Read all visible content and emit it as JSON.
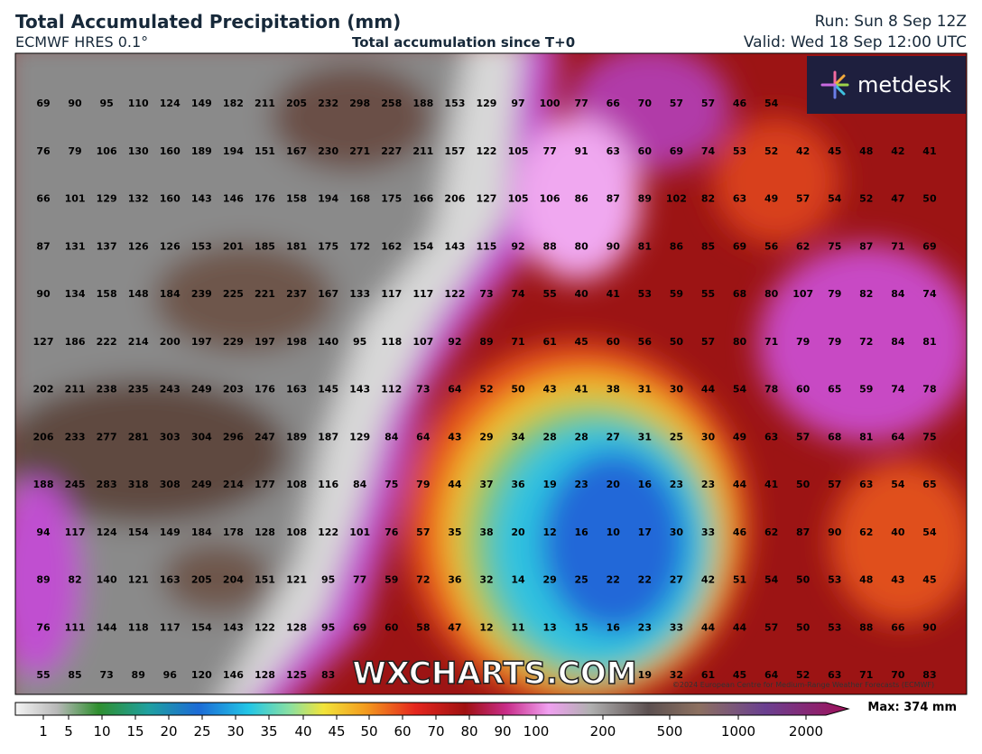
{
  "header": {
    "title": "Total Accumulated Precipitation (mm)",
    "model": "ECMWF HRES 0.1°",
    "subtitle": "Total accumulation since T+0",
    "run": "Run: Sun 8 Sep 12Z",
    "valid": "Valid: Wed 18 Sep 12:00 UTC"
  },
  "logo": "metdesk",
  "watermark": "WXCHARTS.COM",
  "copyright": "©2024 European Centre for Medium-Range Weather Forecasts (ECMWF)",
  "grid": {
    "rows": [
      [
        69,
        90,
        95,
        110,
        124,
        149,
        182,
        211,
        205,
        232,
        298,
        258,
        188,
        153,
        129,
        97,
        100,
        77,
        66,
        70,
        57,
        57,
        46,
        54,
        null,
        null,
        null,
        null,
        null
      ],
      [
        76,
        79,
        106,
        130,
        160,
        189,
        194,
        151,
        167,
        230,
        271,
        227,
        211,
        157,
        122,
        105,
        77,
        91,
        63,
        60,
        69,
        74,
        53,
        52,
        42,
        45,
        48,
        42,
        41
      ],
      [
        66,
        101,
        129,
        132,
        160,
        143,
        146,
        176,
        158,
        194,
        168,
        175,
        166,
        206,
        127,
        105,
        106,
        86,
        87,
        89,
        102,
        82,
        63,
        49,
        57,
        54,
        52,
        47,
        50
      ],
      [
        87,
        131,
        137,
        126,
        126,
        153,
        201,
        185,
        181,
        175,
        172,
        162,
        154,
        143,
        115,
        92,
        88,
        80,
        90,
        81,
        86,
        85,
        69,
        56,
        62,
        75,
        87,
        71,
        69
      ],
      [
        90,
        134,
        158,
        148,
        184,
        239,
        225,
        221,
        237,
        167,
        133,
        117,
        117,
        122,
        73,
        74,
        55,
        40,
        41,
        53,
        59,
        55,
        68,
        80,
        107,
        79,
        82,
        84,
        74
      ],
      [
        127,
        186,
        222,
        214,
        200,
        197,
        229,
        197,
        198,
        140,
        95,
        118,
        107,
        92,
        89,
        71,
        61,
        45,
        60,
        56,
        50,
        57,
        80,
        71,
        79,
        79,
        72,
        84,
        81
      ],
      [
        202,
        211,
        238,
        235,
        243,
        249,
        203,
        176,
        163,
        145,
        143,
        112,
        73,
        64,
        52,
        50,
        43,
        41,
        38,
        31,
        30,
        44,
        54,
        78,
        60,
        65,
        59,
        74,
        78
      ],
      [
        206,
        233,
        277,
        281,
        303,
        304,
        296,
        247,
        189,
        187,
        129,
        84,
        64,
        43,
        29,
        34,
        28,
        28,
        27,
        31,
        25,
        30,
        49,
        63,
        57,
        68,
        81,
        64,
        75
      ],
      [
        188,
        245,
        283,
        318,
        308,
        249,
        214,
        177,
        108,
        116,
        84,
        75,
        79,
        44,
        37,
        36,
        19,
        23,
        20,
        16,
        23,
        23,
        44,
        41,
        50,
        57,
        63,
        54,
        65
      ],
      [
        94,
        117,
        124,
        154,
        149,
        184,
        178,
        128,
        108,
        122,
        101,
        76,
        57,
        35,
        38,
        20,
        12,
        16,
        10,
        17,
        30,
        33,
        46,
        62,
        87,
        90,
        62,
        40,
        54
      ],
      [
        89,
        82,
        140,
        121,
        163,
        205,
        204,
        151,
        121,
        95,
        77,
        59,
        72,
        36,
        32,
        14,
        29,
        25,
        22,
        22,
        27,
        42,
        51,
        54,
        50,
        53,
        48,
        43,
        45
      ],
      [
        76,
        111,
        144,
        118,
        117,
        154,
        143,
        122,
        128,
        95,
        69,
        60,
        58,
        47,
        12,
        11,
        13,
        15,
        16,
        23,
        33,
        44,
        44,
        57,
        50,
        53,
        88,
        66,
        90
      ],
      [
        55,
        85,
        73,
        89,
        96,
        120,
        146,
        128,
        125,
        83,
        null,
        null,
        null,
        null,
        null,
        null,
        null,
        null,
        null,
        19,
        32,
        61,
        45,
        64,
        52,
        63,
        71,
        70,
        83
      ]
    ]
  },
  "legend": {
    "ticks": [
      1,
      5,
      10,
      15,
      20,
      25,
      30,
      35,
      40,
      45,
      50,
      60,
      70,
      80,
      90,
      100,
      200,
      500,
      1000,
      2000
    ],
    "max": "Max: 374 mm"
  }
}
